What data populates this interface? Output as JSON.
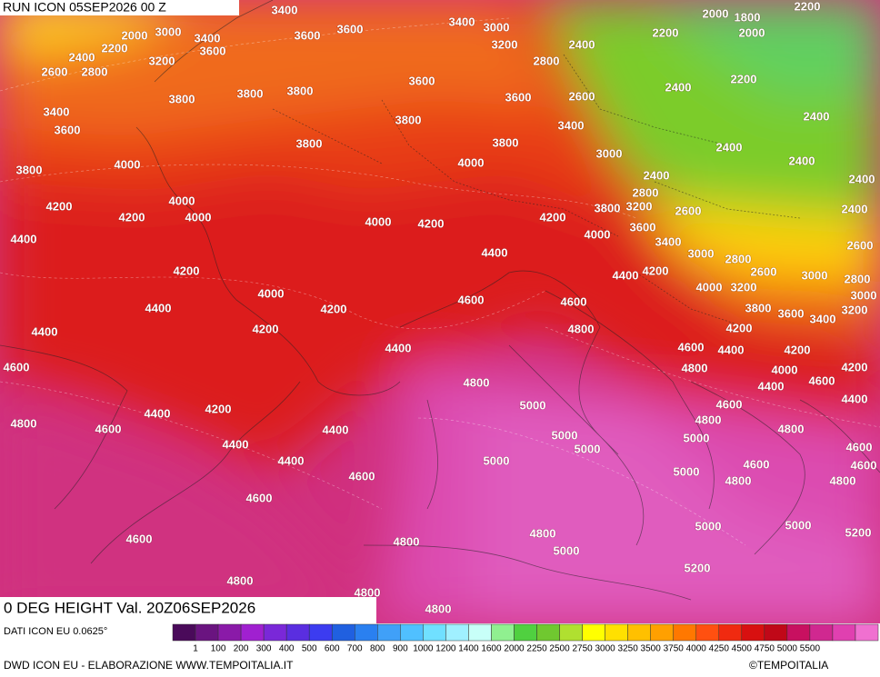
{
  "header": {
    "run": "RUN ICON 05SEP2026 00 Z"
  },
  "map": {
    "title": "0 DEG HEIGHT Val. 20Z06SEP2026",
    "contour_labels": [
      3400,
      3000,
      2000,
      3400,
      3600,
      3600,
      3600,
      3400,
      3000,
      3200,
      2200,
      2400,
      3200,
      2600,
      2800,
      2400,
      2800,
      2000,
      1800,
      2200,
      2000,
      2200,
      2200,
      2400,
      3800,
      3800,
      3600,
      3600,
      2600,
      3800,
      3400,
      3600,
      3800,
      3400,
      2400,
      2400,
      3800,
      3800,
      3000,
      2400,
      3800,
      4000,
      4000,
      2400,
      2400,
      2800,
      4000,
      4200,
      4000,
      4200,
      4000,
      4200,
      4200,
      3800,
      3200,
      2600,
      2400,
      3600,
      4400,
      4000,
      3400,
      2600,
      3000,
      2800,
      4400,
      4200,
      4400,
      4200,
      2600,
      3000,
      2800,
      4000,
      3200,
      4000,
      3000,
      4600,
      4600,
      4400,
      4200,
      3800,
      3600,
      3400,
      3200,
      4400,
      4200,
      4800,
      4200,
      4400,
      4600,
      4400,
      4200,
      4600,
      4800,
      4000,
      4200,
      4800,
      4600,
      4400,
      4600,
      4400,
      5000,
      4200,
      4400,
      4800,
      4800,
      4600,
      4800,
      4400,
      5000,
      5000,
      4400,
      5000,
      4600,
      4400,
      5000,
      4600,
      4600,
      4600,
      5000,
      4800,
      4800,
      4600,
      5000,
      5000,
      4800,
      4600,
      4800,
      5200,
      5000,
      5200,
      4800,
      4800,
      4800
    ]
  },
  "legend": {
    "source": "DATI ICON EU 0.0625°",
    "colors": [
      "#4a0a5a",
      "#6a1480",
      "#8a1aa8",
      "#a020d0",
      "#7a28d8",
      "#5a2ee0",
      "#3c3cf0",
      "#2060e0",
      "#2a80f0",
      "#40a0f8",
      "#50c0ff",
      "#70e0ff",
      "#a0f0ff",
      "#c8fff8",
      "#90f090",
      "#50d040",
      "#70c830",
      "#b0e030",
      "#ffff00",
      "#ffe000",
      "#ffc000",
      "#ffa000",
      "#ff7800",
      "#ff5010",
      "#f02a10",
      "#d81010",
      "#c00818",
      "#c81060",
      "#d02890",
      "#e040b0",
      "#f070d0"
    ],
    "labels": [
      1,
      100,
      200,
      300,
      400,
      500,
      600,
      700,
      800,
      900,
      1000,
      1200,
      1400,
      1600,
      2000,
      2250,
      2500,
      2750,
      3000,
      3250,
      3500,
      3750,
      4000,
      4250,
      4500,
      4750,
      5000,
      5500
    ]
  },
  "footer": {
    "credit": "DWD ICON EU - ELABORAZIONE WWW.TEMPOITALIA.IT",
    "copyright": "©TEMPOITALIA"
  }
}
